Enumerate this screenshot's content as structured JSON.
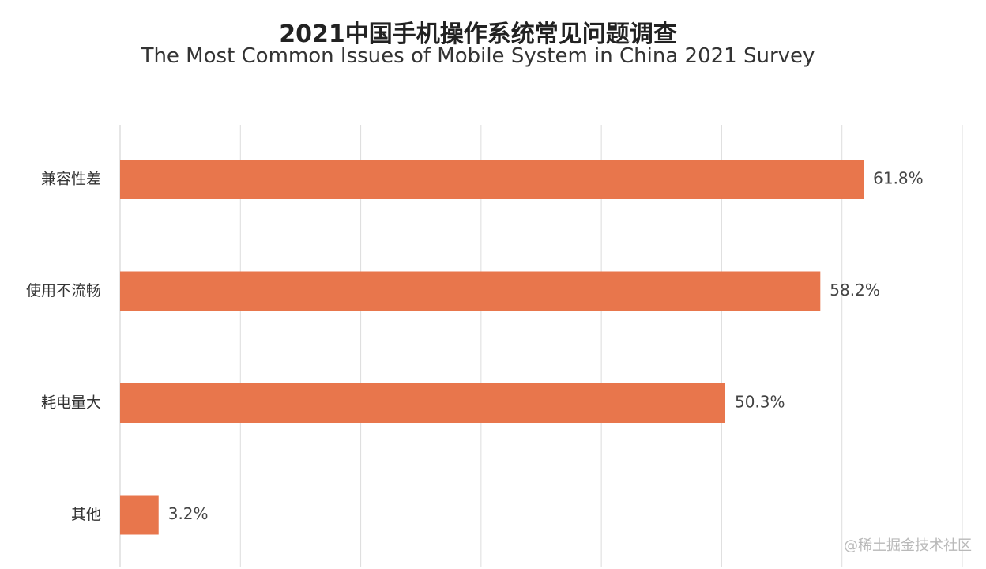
{
  "chart": {
    "title": "2021中国手机操作系统常见问题调查",
    "subtitle": "The Most Common Issues of Mobile System in China 2021 Survey"
  },
  "watermark": "@稀土掘金技术社区",
  "colors": {
    "bar": "#E8764C",
    "grid": "#dddddd",
    "background": "#ffffff"
  },
  "chart_data": {
    "type": "bar",
    "orientation": "horizontal",
    "title": "2021中国手机操作系统常见问题调查",
    "subtitle": "The Most Common Issues of Mobile System in China 2021 Survey",
    "categories": [
      "兼容性差",
      "使用不流畅",
      "耗电量大",
      "其他"
    ],
    "values": [
      61.8,
      58.2,
      50.3,
      3.2
    ],
    "value_labels": [
      "61.8%",
      "58.2%",
      "50.3%",
      "3.2%"
    ],
    "xlim": [
      0,
      70
    ],
    "grid": true,
    "legend": "none"
  }
}
